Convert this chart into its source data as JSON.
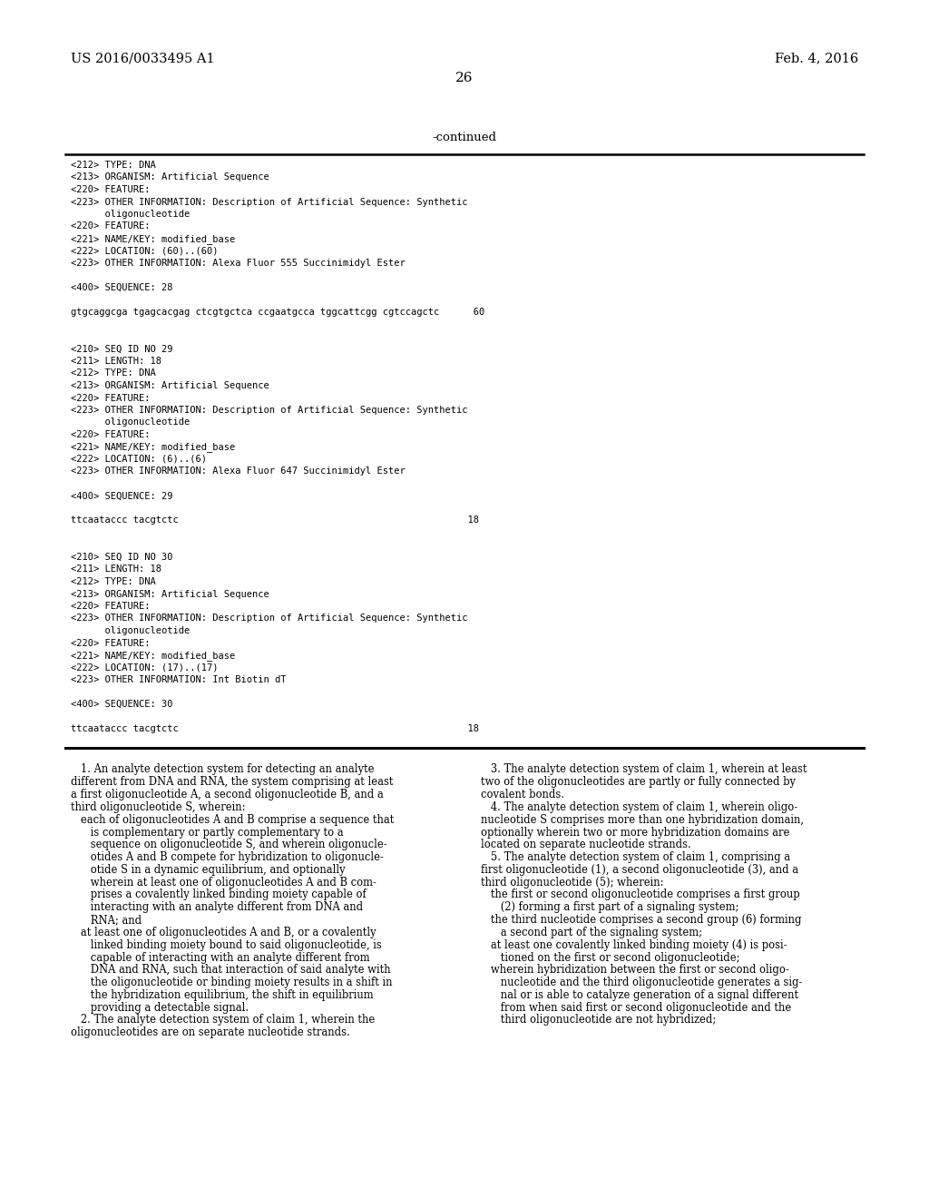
{
  "bg_color": "#ffffff",
  "header_left": "US 2016/0033495 A1",
  "header_right": "Feb. 4, 2016",
  "page_number": "26",
  "continued_label": "-continued",
  "monospace_lines": [
    "<212> TYPE: DNA",
    "<213> ORGANISM: Artificial Sequence",
    "<220> FEATURE:",
    "<223> OTHER INFORMATION: Description of Artificial Sequence: Synthetic",
    "      oligonucleotide",
    "<220> FEATURE:",
    "<221> NAME/KEY: modified_base",
    "<222> LOCATION: (60)..(60)",
    "<223> OTHER INFORMATION: Alexa Fluor 555 Succinimidyl Ester",
    "",
    "<400> SEQUENCE: 28",
    "",
    "gtgcaggcga tgagcacgag ctcgtgctca ccgaatgcca tggcattcgg cgtccagctc      60",
    "",
    "",
    "<210> SEQ ID NO 29",
    "<211> LENGTH: 18",
    "<212> TYPE: DNA",
    "<213> ORGANISM: Artificial Sequence",
    "<220> FEATURE:",
    "<223> OTHER INFORMATION: Description of Artificial Sequence: Synthetic",
    "      oligonucleotide",
    "<220> FEATURE:",
    "<221> NAME/KEY: modified_base",
    "<222> LOCATION: (6)..(6)",
    "<223> OTHER INFORMATION: Alexa Fluor 647 Succinimidyl Ester",
    "",
    "<400> SEQUENCE: 29",
    "",
    "ttcaataccc tacgtctc                                                   18",
    "",
    "",
    "<210> SEQ ID NO 30",
    "<211> LENGTH: 18",
    "<212> TYPE: DNA",
    "<213> ORGANISM: Artificial Sequence",
    "<220> FEATURE:",
    "<223> OTHER INFORMATION: Description of Artificial Sequence: Synthetic",
    "      oligonucleotide",
    "<220> FEATURE:",
    "<221> NAME/KEY: modified_base",
    "<222> LOCATION: (17)..(17)",
    "<223> OTHER INFORMATION: Int Biotin dT",
    "",
    "<400> SEQUENCE: 30",
    "",
    "ttcaataccc tacgtctc                                                   18"
  ],
  "claims_col1_lines": [
    [
      "bold",
      "   1. ",
      "normal",
      "An analyte detection system for detecting an analyte"
    ],
    [
      "normal",
      "different from DNA and RNA, the system comprising at least"
    ],
    [
      "normal",
      "a first oligonucleotide A, a second oligonucleotide B, and a"
    ],
    [
      "normal",
      "third oligonucleotide S, wherein:"
    ],
    [
      "normal",
      "   each of oligonucleotides A and B comprise a sequence that"
    ],
    [
      "normal",
      "      is complementary or partly complementary to a"
    ],
    [
      "normal",
      "      sequence on oligonucleotide S, and wherein oligonucle-"
    ],
    [
      "normal",
      "      otides A and B compete for hybridization to oligonucle-"
    ],
    [
      "normal",
      "      otide S in a dynamic equilibrium, and optionally"
    ],
    [
      "normal",
      "      wherein at least one of oligonucleotides A and B com-"
    ],
    [
      "normal",
      "      prises a covalently linked binding moiety capable of"
    ],
    [
      "normal",
      "      interacting with an analyte different from DNA and"
    ],
    [
      "normal",
      "      RNA; and"
    ],
    [
      "normal",
      "   at least one of oligonucleotides A and B, or a covalently"
    ],
    [
      "normal",
      "      linked binding moiety bound to said oligonucleotide, is"
    ],
    [
      "normal",
      "      capable of interacting with an analyte different from"
    ],
    [
      "normal",
      "      DNA and RNA, such that interaction of said analyte with"
    ],
    [
      "normal",
      "      the oligonucleotide or binding moiety results in a shift in"
    ],
    [
      "normal",
      "      the hybridization equilibrium, the shift in equilibrium"
    ],
    [
      "normal",
      "      providing a detectable signal."
    ],
    [
      "bold",
      "   2. ",
      "normal",
      "The analyte detection system of claim ",
      "bold",
      "1",
      "normal",
      ", wherein the"
    ],
    [
      "normal",
      "oligonucleotides are on separate nucleotide strands."
    ]
  ],
  "claims_col2_lines": [
    [
      "bold",
      "   3. ",
      "normal",
      "The analyte detection system of claim ",
      "bold",
      "1",
      "normal",
      ", wherein at least"
    ],
    [
      "normal",
      "two of the oligonucleotides are partly or fully connected by"
    ],
    [
      "normal",
      "covalent bonds."
    ],
    [
      "bold",
      "   4. ",
      "normal",
      "The analyte detection system of claim ",
      "bold",
      "1",
      "normal",
      ", wherein oligo-"
    ],
    [
      "normal",
      "nucleotide S comprises more than one hybridization domain,"
    ],
    [
      "normal",
      "optionally wherein two or more hybridization domains are"
    ],
    [
      "normal",
      "located on separate nucleotide strands."
    ],
    [
      "bold",
      "   5. ",
      "normal",
      "The analyte detection system of claim ",
      "bold",
      "1",
      "normal",
      ", comprising a"
    ],
    [
      "normal",
      "first oligonucleotide (1), a second oligonucleotide (3), and a"
    ],
    [
      "normal",
      "third oligonucleotide (5); wherein:"
    ],
    [
      "normal",
      "   the first or second oligonucleotide comprises a first group"
    ],
    [
      "normal",
      "      (2) forming a first part of a signaling system;"
    ],
    [
      "normal",
      "   the third nucleotide comprises a second group (6) forming"
    ],
    [
      "normal",
      "      a second part of the signaling system;"
    ],
    [
      "normal",
      "   at least one covalently linked binding moiety (4) is posi-"
    ],
    [
      "normal",
      "      tioned on the first or second oligonucleotide;"
    ],
    [
      "normal",
      "   wherein hybridization between the first or second oligo-"
    ],
    [
      "normal",
      "      nucleotide and the third oligonucleotide generates a sig-"
    ],
    [
      "normal",
      "      nal or is able to catalyze generation of a signal different"
    ],
    [
      "normal",
      "      from when said first or second oligonucleotide and the"
    ],
    [
      "normal",
      "      third oligonucleotide are not hybridized;"
    ]
  ]
}
